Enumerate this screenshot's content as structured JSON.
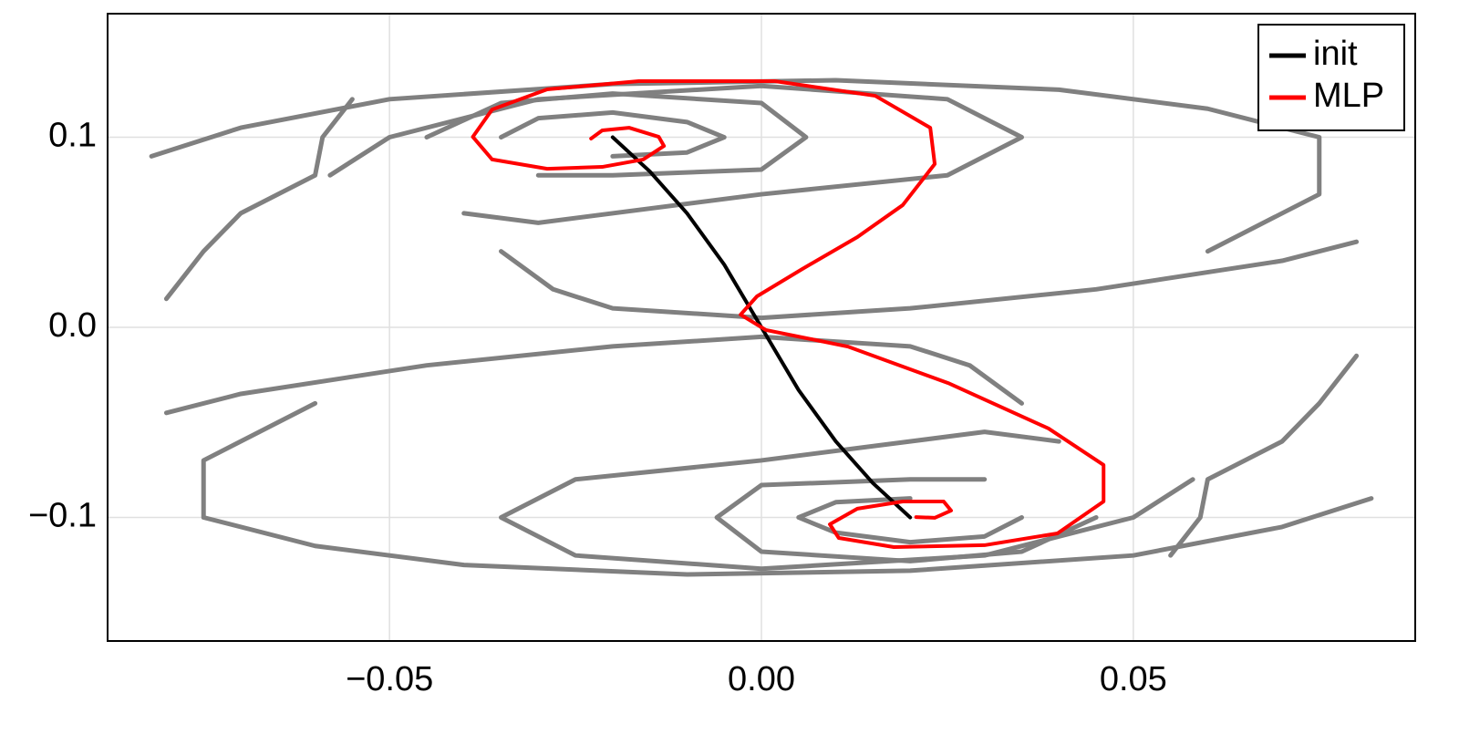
{
  "chart_data": {
    "type": "line",
    "xlim": [
      -0.0879,
      0.0879
    ],
    "ylim": [
      -0.165,
      0.165
    ],
    "xticks": [
      {
        "value": -0.05,
        "label": "−0.05"
      },
      {
        "value": 0,
        "label": "0.00"
      },
      0.05
    ],
    "yticks": [
      {
        "value": -0.1,
        "label": "−0.1"
      },
      {
        "value": 0,
        "label": "0.0"
      },
      0.1
    ],
    "grid": true,
    "legend": "top-right",
    "series": [
      {
        "color": "#808080",
        "x": [
          -0.035,
          -0.03,
          -0.02,
          -0.01,
          -0.005,
          -0.01,
          -0.02
        ],
        "y": [
          0.1,
          0.11,
          0.113,
          0.108,
          0.1,
          0.092,
          0.09
        ]
      },
      {
        "color": "#808080",
        "x": [
          -0.045,
          -0.035,
          -0.02,
          0,
          0.006,
          0,
          -0.02,
          -0.03
        ],
        "y": [
          0.1,
          0.118,
          0.123,
          0.118,
          0.1,
          0.083,
          0.08,
          0.08
        ]
      },
      {
        "color": "#808080",
        "x": [
          -0.058,
          -0.05,
          -0.03,
          0,
          0.025,
          0.035,
          0.025,
          0,
          -0.03,
          -0.04
        ],
        "y": [
          0.08,
          0.1,
          0.12,
          0.127,
          0.12,
          0.1,
          0.08,
          0.07,
          0.055,
          0.06
        ]
      },
      {
        "color": "#808080",
        "x": [
          -0.082,
          -0.07,
          -0.05,
          -0.02,
          0.01,
          0.04,
          0.06,
          0.075,
          0.075,
          0.06
        ],
        "y": [
          0.09,
          0.105,
          0.12,
          0.128,
          0.13,
          0.125,
          0.115,
          0.1,
          0.07,
          0.04
        ]
      },
      {
        "color": "#808080",
        "x": [
          -0.035,
          -0.028,
          -0.02,
          0,
          0.02,
          0.045,
          0.07,
          0.08
        ],
        "y": [
          0.04,
          0.02,
          0.01,
          0.005,
          0.01,
          0.02,
          0.035,
          0.045
        ]
      },
      {
        "color": "#808080",
        "x": [
          0.035,
          0.03,
          0.02,
          0.01,
          0.005,
          0.01,
          0.02
        ],
        "y": [
          -0.1,
          -0.11,
          -0.113,
          -0.108,
          -0.1,
          -0.092,
          -0.09
        ]
      },
      {
        "color": "#808080",
        "x": [
          0.045,
          0.035,
          0.02,
          0,
          -0.006,
          0,
          0.02,
          0.03
        ],
        "y": [
          -0.1,
          -0.118,
          -0.123,
          -0.118,
          -0.1,
          -0.083,
          -0.08,
          -0.08
        ]
      },
      {
        "color": "#808080",
        "x": [
          0.058,
          0.05,
          0.03,
          0,
          -0.025,
          -0.035,
          -0.025,
          0,
          0.03,
          0.04
        ],
        "y": [
          -0.08,
          -0.1,
          -0.12,
          -0.127,
          -0.12,
          -0.1,
          -0.08,
          -0.07,
          -0.055,
          -0.06
        ]
      },
      {
        "color": "#808080",
        "x": [
          0.082,
          0.07,
          0.05,
          0.02,
          -0.01,
          -0.04,
          -0.06,
          -0.075,
          -0.075,
          -0.06
        ],
        "y": [
          -0.09,
          -0.105,
          -0.12,
          -0.128,
          -0.13,
          -0.125,
          -0.115,
          -0.1,
          -0.07,
          -0.04
        ]
      },
      {
        "color": "#808080",
        "x": [
          0.035,
          0.028,
          0.02,
          0,
          -0.02,
          -0.045,
          -0.07,
          -0.08
        ],
        "y": [
          -0.04,
          -0.02,
          -0.01,
          -0.005,
          -0.01,
          -0.02,
          -0.035,
          -0.045
        ]
      },
      {
        "color": "#808080",
        "x": [
          -0.08,
          -0.075,
          -0.07,
          -0.06,
          -0.059,
          -0.055
        ],
        "y": [
          0.015,
          0.04,
          0.06,
          0.08,
          0.1,
          0.12
        ]
      },
      {
        "color": "#808080",
        "x": [
          0.08,
          0.075,
          0.07,
          0.06,
          0.059,
          0.055
        ],
        "y": [
          -0.015,
          -0.04,
          -0.06,
          -0.08,
          -0.1,
          -0.12
        ]
      },
      {
        "name": "init",
        "color": "#000000",
        "x": [
          -0.02,
          -0.015,
          -0.01,
          -0.005,
          0,
          0.005,
          0.01,
          0.015,
          0.02
        ],
        "y": [
          0.1,
          0.082,
          0.06,
          0.033,
          0,
          -0.033,
          -0.06,
          -0.082,
          -0.1
        ]
      },
      {
        "name": "MLP",
        "color": "#ff0000",
        "x": [
          -0.0229,
          -0.0214,
          -0.0178,
          -0.0138,
          -0.0131,
          -0.0159,
          -0.0214,
          -0.0288,
          -0.0362,
          -0.0388,
          -0.0362,
          -0.0288,
          -0.0165,
          0.0018,
          0.0153,
          0.0227,
          0.0233,
          0.019,
          0.0129,
          0.0055,
          -0.0006,
          -0.0028,
          0.0006,
          0.0116,
          0.0251,
          0.0386,
          0.046,
          0.046,
          0.0398,
          0.03,
          0.0178,
          0.0104,
          0.0092,
          0.0129,
          0.019,
          0.0245,
          0.0255,
          0.0233,
          0.0208
        ],
        "y": [
          0.0993,
          0.1036,
          0.105,
          0.1002,
          0.0954,
          0.0883,
          0.0844,
          0.0834,
          0.0883,
          0.1002,
          0.1146,
          0.1252,
          0.1295,
          0.1295,
          0.1218,
          0.105,
          0.0859,
          0.0643,
          0.0475,
          0.0307,
          0.0163,
          0.0067,
          -0.0014,
          -0.0101,
          -0.0293,
          -0.0532,
          -0.0724,
          -0.0916,
          -0.1084,
          -0.1146,
          -0.1156,
          -0.1108,
          -0.1036,
          -0.0954,
          -0.0916,
          -0.0916,
          -0.0964,
          -0.1002,
          -0.0998
        ]
      }
    ]
  }
}
